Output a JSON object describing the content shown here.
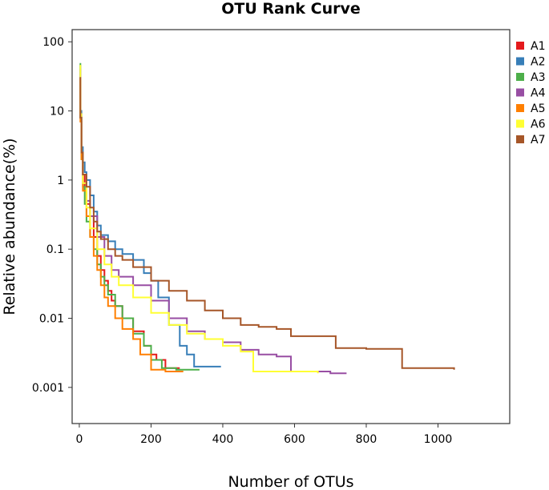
{
  "chart_data": {
    "type": "line",
    "title": "OTU Rank Curve",
    "xlabel": "Number of OTUs",
    "ylabel": "Relative abundance(%)",
    "xlim": [
      -20,
      1200
    ],
    "ylim": [
      0.0003,
      150
    ],
    "yscale": "log",
    "x_ticks": [
      0,
      200,
      400,
      600,
      800,
      1000
    ],
    "x_tick_labels": [
      "0",
      "200",
      "400",
      "600",
      "800",
      "1000"
    ],
    "y_ticks": [
      0.001,
      0.01,
      0.1,
      1,
      10,
      100
    ],
    "y_tick_labels": [
      "0.001",
      "0.01",
      "0.1",
      "1",
      "10",
      "100"
    ],
    "legend_position": "right",
    "series": [
      {
        "name": "A1",
        "color": "#e41a1c",
        "points": [
          [
            1,
            30
          ],
          [
            3,
            8
          ],
          [
            6,
            2.5
          ],
          [
            10,
            1.2
          ],
          [
            15,
            0.7
          ],
          [
            20,
            0.45
          ],
          [
            30,
            0.3
          ],
          [
            40,
            0.15
          ],
          [
            50,
            0.08
          ],
          [
            60,
            0.05
          ],
          [
            70,
            0.035
          ],
          [
            80,
            0.025
          ],
          [
            90,
            0.018
          ],
          [
            100,
            0.015
          ],
          [
            120,
            0.01
          ],
          [
            150,
            0.0065
          ],
          [
            180,
            0.004
          ],
          [
            200,
            0.003
          ],
          [
            215,
            0.0025
          ],
          [
            240,
            0.0019
          ],
          [
            280,
            0.0019
          ]
        ]
      },
      {
        "name": "A2",
        "color": "#377eb8",
        "points": [
          [
            1,
            45
          ],
          [
            3,
            10
          ],
          [
            6,
            3
          ],
          [
            10,
            1.8
          ],
          [
            15,
            1.3
          ],
          [
            20,
            1.0
          ],
          [
            30,
            0.6
          ],
          [
            40,
            0.35
          ],
          [
            50,
            0.22
          ],
          [
            60,
            0.16
          ],
          [
            80,
            0.13
          ],
          [
            100,
            0.1
          ],
          [
            120,
            0.085
          ],
          [
            150,
            0.07
          ],
          [
            180,
            0.045
          ],
          [
            200,
            0.035
          ],
          [
            220,
            0.02
          ],
          [
            250,
            0.008
          ],
          [
            280,
            0.004
          ],
          [
            300,
            0.003
          ],
          [
            320,
            0.002
          ],
          [
            395,
            0.002
          ]
        ]
      },
      {
        "name": "A3",
        "color": "#4daf4a",
        "points": [
          [
            1,
            48
          ],
          [
            3,
            8
          ],
          [
            6,
            2
          ],
          [
            10,
            0.8
          ],
          [
            15,
            0.45
          ],
          [
            20,
            0.25
          ],
          [
            30,
            0.15
          ],
          [
            40,
            0.1
          ],
          [
            50,
            0.06
          ],
          [
            60,
            0.04
          ],
          [
            70,
            0.03
          ],
          [
            80,
            0.022
          ],
          [
            100,
            0.015
          ],
          [
            120,
            0.01
          ],
          [
            150,
            0.006
          ],
          [
            180,
            0.004
          ],
          [
            200,
            0.0025
          ],
          [
            230,
            0.0019
          ],
          [
            270,
            0.0018
          ],
          [
            335,
            0.0018
          ]
        ]
      },
      {
        "name": "A4",
        "color": "#984ea3",
        "points": [
          [
            1,
            40
          ],
          [
            3,
            9
          ],
          [
            6,
            2.5
          ],
          [
            10,
            0.9
          ],
          [
            20,
            0.5
          ],
          [
            30,
            0.3
          ],
          [
            50,
            0.15
          ],
          [
            70,
            0.08
          ],
          [
            90,
            0.05
          ],
          [
            110,
            0.04
          ],
          [
            150,
            0.03
          ],
          [
            200,
            0.018
          ],
          [
            250,
            0.01
          ],
          [
            300,
            0.0065
          ],
          [
            350,
            0.005
          ],
          [
            400,
            0.0045
          ],
          [
            450,
            0.0035
          ],
          [
            500,
            0.003
          ],
          [
            550,
            0.0028
          ],
          [
            590,
            0.0017
          ],
          [
            700,
            0.0016
          ],
          [
            745,
            0.0016
          ]
        ]
      },
      {
        "name": "A5",
        "color": "#ff7f00",
        "points": [
          [
            1,
            30
          ],
          [
            3,
            7
          ],
          [
            6,
            2
          ],
          [
            10,
            0.7
          ],
          [
            20,
            0.3
          ],
          [
            30,
            0.15
          ],
          [
            40,
            0.08
          ],
          [
            50,
            0.05
          ],
          [
            60,
            0.03
          ],
          [
            70,
            0.02
          ],
          [
            80,
            0.015
          ],
          [
            100,
            0.01
          ],
          [
            120,
            0.007
          ],
          [
            150,
            0.005
          ],
          [
            170,
            0.003
          ],
          [
            200,
            0.0018
          ],
          [
            240,
            0.0017
          ],
          [
            290,
            0.0017
          ]
        ]
      },
      {
        "name": "A6",
        "color": "#ffff33",
        "points": [
          [
            1,
            45
          ],
          [
            3,
            9
          ],
          [
            6,
            2.5
          ],
          [
            10,
            0.9
          ],
          [
            20,
            0.4
          ],
          [
            30,
            0.2
          ],
          [
            50,
            0.1
          ],
          [
            70,
            0.06
          ],
          [
            90,
            0.04
          ],
          [
            110,
            0.03
          ],
          [
            150,
            0.02
          ],
          [
            200,
            0.012
          ],
          [
            250,
            0.008
          ],
          [
            300,
            0.006
          ],
          [
            350,
            0.005
          ],
          [
            400,
            0.004
          ],
          [
            450,
            0.0033
          ],
          [
            485,
            0.0017
          ],
          [
            600,
            0.0017
          ],
          [
            665,
            0.0016
          ]
        ]
      },
      {
        "name": "A7",
        "color": "#a65628",
        "points": [
          [
            1,
            30
          ],
          [
            3,
            8
          ],
          [
            6,
            2.5
          ],
          [
            10,
            1.2
          ],
          [
            20,
            0.8
          ],
          [
            30,
            0.4
          ],
          [
            40,
            0.25
          ],
          [
            50,
            0.18
          ],
          [
            60,
            0.14
          ],
          [
            80,
            0.1
          ],
          [
            100,
            0.08
          ],
          [
            120,
            0.07
          ],
          [
            150,
            0.055
          ],
          [
            200,
            0.035
          ],
          [
            250,
            0.025
          ],
          [
            300,
            0.018
          ],
          [
            350,
            0.013
          ],
          [
            400,
            0.01
          ],
          [
            450,
            0.008
          ],
          [
            500,
            0.0075
          ],
          [
            550,
            0.007
          ],
          [
            590,
            0.0055
          ],
          [
            715,
            0.0037
          ],
          [
            800,
            0.0036
          ],
          [
            900,
            0.0019
          ],
          [
            1045,
            0.0018
          ]
        ]
      }
    ]
  }
}
